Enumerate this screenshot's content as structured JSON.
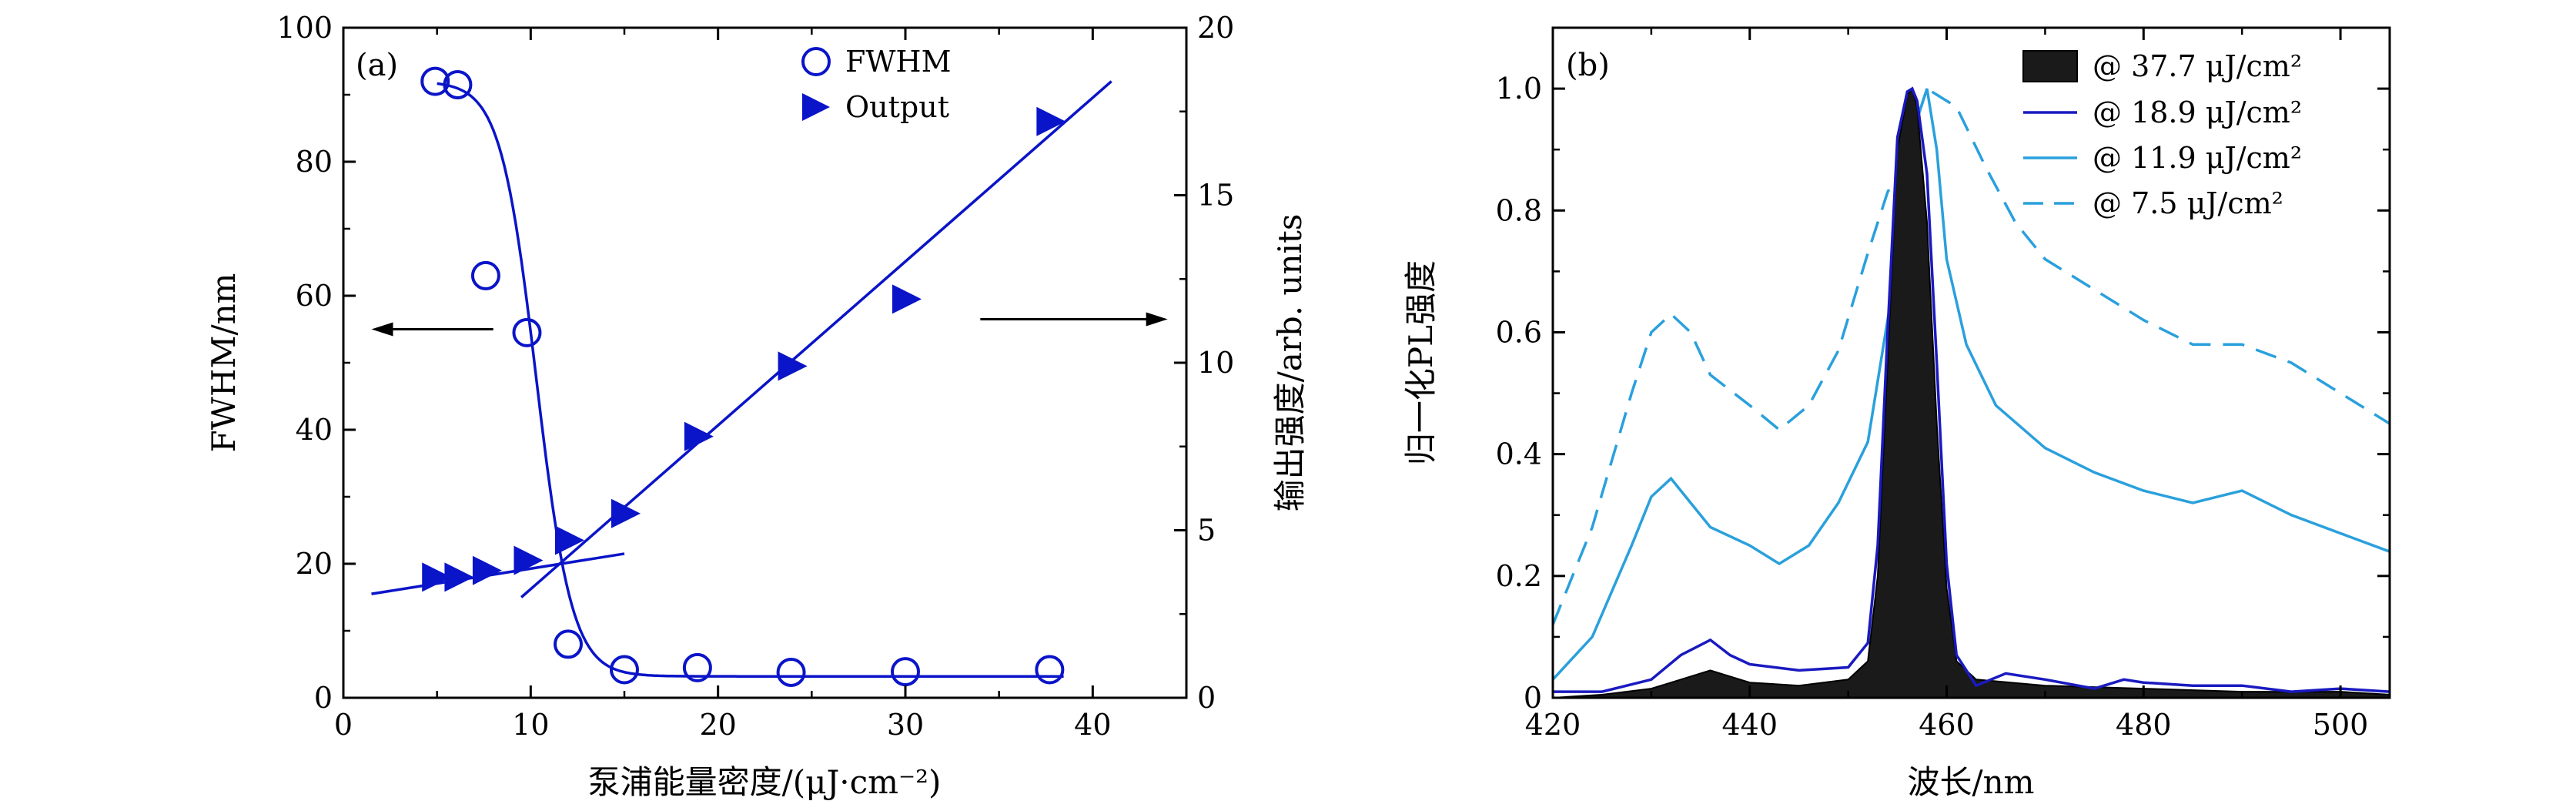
{
  "colors": {
    "fwhm": "#0a14c8",
    "output": "#0a14c8",
    "filled": "#1a1a1a",
    "s18": "#1a1ac0",
    "s11": "#2aa0dc",
    "s7": "#2aa0dc"
  },
  "chart_data": [
    {
      "type": "scatter",
      "panel_label": "(a)",
      "xlabel": "泵浦能量密度/(μJ·cm⁻²)",
      "ylabel": "FWHM/nm",
      "y2label": "输出强度/arb. units",
      "xlim": [
        0,
        45
      ],
      "ylim": [
        0,
        100
      ],
      "y2lim": [
        0,
        20
      ],
      "x_ticks": [
        "0",
        "10",
        "20",
        "30",
        "40"
      ],
      "y_ticks": [
        "0",
        "20",
        "40",
        "60",
        "80",
        "100"
      ],
      "y2_ticks": [
        "0",
        "5",
        "10",
        "15",
        "20"
      ],
      "legend": [
        "FWHM",
        "Output"
      ],
      "legend_position": "top-right",
      "series": [
        {
          "name": "FWHM",
          "marker": "open-circle",
          "axis": "left",
          "x": [
            4.9,
            6.1,
            7.6,
            9.8,
            12.0,
            15.0,
            18.9,
            23.9,
            30.0,
            37.7
          ],
          "y": [
            92,
            91.5,
            63,
            54.5,
            8,
            4.2,
            4.5,
            3.8,
            3.9,
            4.2
          ]
        },
        {
          "name": "Output",
          "marker": "right-triangle",
          "axis": "right",
          "x": [
            4.9,
            6.1,
            7.6,
            9.8,
            12.0,
            15.0,
            18.9,
            23.9,
            30.0,
            37.7
          ],
          "y": [
            3.6,
            3.6,
            3.8,
            4.1,
            4.7,
            5.5,
            7.8,
            9.9,
            11.9,
            17.2
          ]
        }
      ],
      "fit_lines": {
        "fwhm_sigmoid": {
          "top": 92,
          "bottom": 3.2,
          "x0": 10.3,
          "width": 0.95
        },
        "output_low": {
          "x": [
            1.5,
            15
          ],
          "y": [
            3.1,
            4.3
          ]
        },
        "output_high": {
          "x": [
            9.5,
            41
          ],
          "y": [
            3.0,
            18.4
          ]
        }
      },
      "arrows": [
        {
          "direction": "left",
          "x_from": 8,
          "x_to": 1.5,
          "y": 55,
          "axis": "left"
        },
        {
          "direction": "right",
          "x_from": 34,
          "x_to": 44,
          "y": 11.3,
          "axis": "right"
        }
      ]
    },
    {
      "type": "line",
      "panel_label": "(b)",
      "xlabel": "波长/nm",
      "ylabel": "归一化PL强度",
      "xlim": [
        420,
        505
      ],
      "ylim": [
        0,
        1.1
      ],
      "x_ticks": [
        "420",
        "440",
        "460",
        "480",
        "500"
      ],
      "y_ticks": [
        "0",
        "0.2",
        "0.4",
        "0.6",
        "0.8",
        "1.0"
      ],
      "legend_position": "top-right",
      "series": [
        {
          "name": "@ 37.7 μJ/cm²",
          "style": "filled",
          "x": [
            420,
            425,
            430,
            433,
            436,
            438,
            440,
            445,
            450,
            452,
            453,
            454,
            455,
            456,
            456.5,
            457,
            458,
            459,
            460,
            461,
            463,
            470,
            480,
            490,
            500,
            505
          ],
          "y": [
            0,
            0.005,
            0.015,
            0.03,
            0.045,
            0.035,
            0.025,
            0.02,
            0.03,
            0.06,
            0.2,
            0.55,
            0.9,
            0.99,
            1.0,
            0.97,
            0.78,
            0.45,
            0.18,
            0.06,
            0.03,
            0.02,
            0.015,
            0.01,
            0.01,
            0.005
          ]
        },
        {
          "name": "@ 18.9 μJ/cm²",
          "style": "line",
          "x": [
            420,
            425,
            430,
            433,
            436,
            438,
            440,
            445,
            450,
            452,
            453,
            454,
            455,
            456,
            456.5,
            457,
            458,
            459,
            460,
            461,
            463,
            466,
            470,
            475,
            478,
            480,
            485,
            490,
            495,
            500,
            505
          ],
          "y": [
            0.01,
            0.01,
            0.03,
            0.07,
            0.095,
            0.07,
            0.055,
            0.045,
            0.05,
            0.09,
            0.25,
            0.6,
            0.92,
            0.995,
            1.0,
            0.98,
            0.86,
            0.55,
            0.22,
            0.07,
            0.02,
            0.04,
            0.03,
            0.015,
            0.03,
            0.025,
            0.02,
            0.02,
            0.01,
            0.015,
            0.01
          ]
        },
        {
          "name": "@ 11.9 μJ/cm²",
          "style": "line",
          "x": [
            420,
            424,
            428,
            430,
            432,
            434,
            436,
            440,
            443,
            446,
            449,
            452,
            455,
            457,
            458,
            459,
            460,
            462,
            465,
            470,
            475,
            480,
            485,
            490,
            495,
            500,
            505
          ],
          "y": [
            0.03,
            0.1,
            0.25,
            0.33,
            0.36,
            0.32,
            0.28,
            0.25,
            0.22,
            0.25,
            0.32,
            0.42,
            0.72,
            0.95,
            1.0,
            0.9,
            0.72,
            0.58,
            0.48,
            0.41,
            0.37,
            0.34,
            0.32,
            0.34,
            0.3,
            0.27,
            0.24
          ]
        },
        {
          "name": "@ 7.5 μJ/cm²",
          "style": "dashed",
          "x": [
            420,
            424,
            428,
            430,
            432,
            434,
            436,
            440,
            443,
            446,
            449,
            452,
            454,
            455,
            457,
            458,
            459,
            461,
            464,
            467,
            470,
            475,
            480,
            485,
            490,
            495,
            500,
            505
          ],
          "y": [
            0.12,
            0.28,
            0.5,
            0.6,
            0.63,
            0.6,
            0.53,
            0.48,
            0.44,
            0.48,
            0.57,
            0.73,
            0.83,
            0.86,
            0.95,
            1.0,
            0.99,
            0.97,
            0.87,
            0.78,
            0.72,
            0.67,
            0.62,
            0.58,
            0.58,
            0.55,
            0.5,
            0.45
          ]
        }
      ]
    }
  ]
}
